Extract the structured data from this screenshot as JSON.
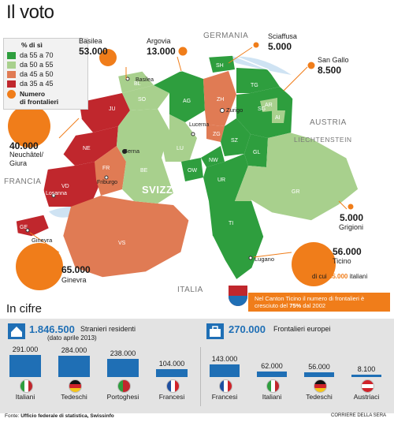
{
  "title": "Il voto",
  "legend": {
    "heading": "% di sì",
    "items": [
      {
        "label": "da 55 a 70",
        "color": "#2e9e3e"
      },
      {
        "label": "da 50 a 55",
        "color": "#a8d08d"
      },
      {
        "label": "da 45 a 50",
        "color": "#e07b54"
      },
      {
        "label": "da 35 a 45",
        "color": "#c0272d"
      }
    ],
    "frontalieri_label_1": "Numero",
    "frontalieri_label_2": "di frontalieri"
  },
  "callouts": [
    {
      "name": "Basilea",
      "value": "53.000"
    },
    {
      "name": "Argovia",
      "value": "13.000"
    },
    {
      "name": "Sciaffusa",
      "value": "5.000"
    },
    {
      "name": "San Gallo",
      "value": "8.500"
    },
    {
      "name": "Neuchâtel/ Giura",
      "value": "40.000"
    },
    {
      "name": "Grigioni",
      "value": "5.000"
    },
    {
      "name": "Ticino",
      "value": "56.000",
      "extra_pre": "di cui ",
      "extra_num": "45.000",
      "extra_post": " italiani"
    },
    {
      "name": "Ginevra",
      "value": "65.000"
    }
  ],
  "map": {
    "country": "SVIZZERA",
    "neighbors": [
      "GERMANIA",
      "AUSTRIA",
      "LIECHTENSTEIN",
      "FRANCIA",
      "ITALIA"
    ],
    "cities": [
      "Basilea",
      "Zurigo",
      "Berna",
      "Lucerna",
      "Friburgo",
      "Losanna",
      "Ginevra",
      "Lugano"
    ],
    "cantons": [
      "JU",
      "BS",
      "BL",
      "SO",
      "AG",
      "SH",
      "ZH",
      "TG",
      "AR",
      "AI",
      "SG",
      "NE",
      "BE",
      "LU",
      "ZG",
      "SZ",
      "GL",
      "OW",
      "NW",
      "UR",
      "FR",
      "VD",
      "GE",
      "VS",
      "TI",
      "GR"
    ]
  },
  "note": {
    "text_pre": "Nel Canton Ticino il numero di frontalieri è cresciuto del ",
    "highlight": "75%",
    "text_post": " dal 2002"
  },
  "in_cifre": {
    "title": "In cifre",
    "residents": {
      "total": "1.846.500",
      "label": "Stranieri residenti",
      "sublabel": "(dato aprile 2013)",
      "groups": [
        {
          "value": "291.000",
          "name": "Italiani",
          "amount": 291000
        },
        {
          "value": "284.000",
          "name": "Tedeschi",
          "amount": 284000
        },
        {
          "value": "238.000",
          "name": "Portoghesi",
          "amount": 238000
        },
        {
          "value": "104.000",
          "name": "Francesi",
          "amount": 104000
        }
      ]
    },
    "workers": {
      "total": "270.000",
      "label": "Frontalieri europei",
      "groups": [
        {
          "value": "143.000",
          "name": "Francesi",
          "amount": 143000
        },
        {
          "value": "62.000",
          "name": "Italiani",
          "amount": 62000
        },
        {
          "value": "56.000",
          "name": "Tedeschi",
          "amount": 56000
        },
        {
          "value": "8.100",
          "name": "Austriaci",
          "amount": 8100
        }
      ]
    }
  },
  "source_label": "Fonte: ",
  "source": "Ufficio federale di statistica, Swissinfo",
  "credit": "CORRIERE DELLA SERA"
}
